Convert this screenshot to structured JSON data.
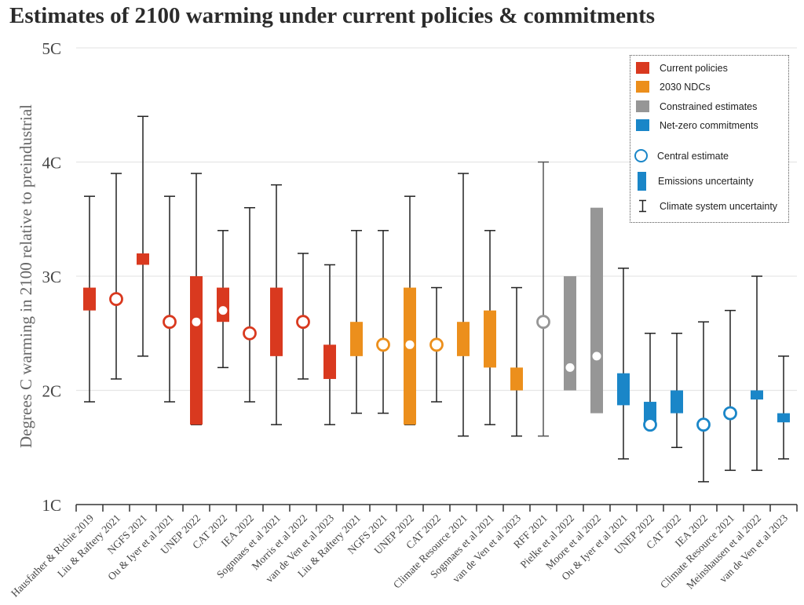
{
  "title": "Estimates of 2100 warming under current policies & commitments",
  "legend": {
    "categories": [
      {
        "label": "Current policies",
        "color": "#d9391f"
      },
      {
        "label": "2030 NDCs",
        "color": "#ec8f1c"
      },
      {
        "label": "Constrained estimates",
        "color": "#969696"
      },
      {
        "label": "Net-zero commitments",
        "color": "#1a86c8"
      }
    ],
    "markers": [
      {
        "label": "Central estimate",
        "icon": "circle-icon"
      },
      {
        "label": "Emissions uncertainty",
        "icon": "bar-icon"
      },
      {
        "label": "Climate system uncertainty",
        "icon": "error-bar-icon"
      }
    ]
  },
  "chart_data": {
    "type": "range-box",
    "title": "Estimates of 2100 warming under current policies & commitments",
    "xlabel": "",
    "ylabel": "Degrees C warming in 2100 relative to preindustrial",
    "ylim": [
      1,
      5
    ],
    "yticks": [
      1,
      2,
      3,
      4,
      5
    ],
    "ytick_labels": [
      "1C",
      "2C",
      "3C",
      "4C",
      "5C"
    ],
    "grid": true,
    "legend_position": "top-right",
    "colors": {
      "Current policies": "#d9391f",
      "2030 NDCs": "#ec8f1c",
      "Constrained estimates": "#969696",
      "Net-zero commitments": "#1a86c8"
    },
    "estimates": [
      {
        "label": "Hausfather & Richie 2019",
        "group": "Current policies",
        "box": [
          2.7,
          2.9
        ],
        "central": null,
        "whisker": [
          1.9,
          3.7
        ]
      },
      {
        "label": "Liu & Raftery 2021",
        "group": "Current policies",
        "box": null,
        "central": 2.8,
        "whisker": [
          2.1,
          3.9
        ]
      },
      {
        "label": "NGFS 2021",
        "group": "Current policies",
        "box": [
          3.1,
          3.2
        ],
        "central": null,
        "whisker": [
          2.3,
          4.4
        ]
      },
      {
        "label": "Ou & Iyer et al 2021",
        "group": "Current policies",
        "box": null,
        "central": 2.6,
        "whisker": [
          1.9,
          3.7
        ]
      },
      {
        "label": "UNEP 2022",
        "group": "Current policies",
        "box": [
          1.7,
          3.0
        ],
        "central": 2.6,
        "whisker": [
          1.7,
          3.9
        ]
      },
      {
        "label": "CAT 2022",
        "group": "Current policies",
        "box": [
          2.6,
          2.9
        ],
        "central": 2.7,
        "whisker": [
          2.2,
          3.4
        ]
      },
      {
        "label": "IEA 2022",
        "group": "Current policies",
        "box": null,
        "central": 2.5,
        "whisker": [
          1.9,
          3.6
        ]
      },
      {
        "label": "Sognnaes et al 2021",
        "group": "Current policies",
        "box": [
          2.3,
          2.9
        ],
        "central": null,
        "whisker": [
          1.7,
          3.8
        ]
      },
      {
        "label": "Morris et al 2022",
        "group": "Current policies",
        "box": null,
        "central": 2.6,
        "whisker": [
          2.1,
          3.2
        ]
      },
      {
        "label": "van de Ven et al 2023",
        "group": "Current policies",
        "box": [
          2.1,
          2.4
        ],
        "central": null,
        "whisker": [
          1.7,
          3.1
        ]
      },
      {
        "label": "Liu & Raftery 2021",
        "group": "2030 NDCs",
        "box": [
          2.3,
          2.6
        ],
        "central": null,
        "whisker": [
          1.8,
          3.4
        ]
      },
      {
        "label": "NGFS 2021",
        "group": "2030 NDCs",
        "box": null,
        "central": 2.4,
        "whisker": [
          1.8,
          3.4
        ]
      },
      {
        "label": "UNEP 2022",
        "group": "2030 NDCs",
        "box": [
          1.7,
          2.9
        ],
        "central": 2.4,
        "whisker": [
          1.7,
          3.7
        ]
      },
      {
        "label": "CAT 2022",
        "group": "2030 NDCs",
        "box": null,
        "central": 2.4,
        "whisker": [
          1.9,
          2.9
        ]
      },
      {
        "label": "Climate Resource 2021",
        "group": "2030 NDCs",
        "box": [
          2.3,
          2.6
        ],
        "central": null,
        "whisker": [
          1.6,
          3.9
        ]
      },
      {
        "label": "Sognnaes et al 2021",
        "group": "2030 NDCs",
        "box": [
          2.2,
          2.7
        ],
        "central": null,
        "whisker": [
          1.7,
          3.4
        ]
      },
      {
        "label": "van de Ven et al 2023",
        "group": "2030 NDCs",
        "box": [
          2.0,
          2.2
        ],
        "central": null,
        "whisker": [
          1.6,
          2.9
        ]
      },
      {
        "label": "RFF 2021",
        "group": "Constrained estimates",
        "box": null,
        "central": 2.6,
        "whisker": [
          1.6,
          4.0
        ]
      },
      {
        "label": "Pielke et al 2022",
        "group": "Constrained estimates",
        "box": [
          2.0,
          3.0
        ],
        "central": 2.2,
        "whisker": null
      },
      {
        "label": "Moore et al 2022",
        "group": "Constrained estimates",
        "box": [
          1.8,
          3.6
        ],
        "central": 2.3,
        "whisker": null
      },
      {
        "label": "Ou & Iyer et al 2021",
        "group": "Net-zero commitments",
        "box": [
          1.87,
          2.15
        ],
        "central": null,
        "whisker": [
          1.4,
          3.07
        ]
      },
      {
        "label": "UNEP 2022",
        "group": "Net-zero commitments",
        "box": [
          1.72,
          1.9
        ],
        "central": 1.7,
        "whisker": [
          1.7,
          2.5
        ]
      },
      {
        "label": "CAT 2022",
        "group": "Net-zero commitments",
        "box": [
          1.8,
          2.0
        ],
        "central": null,
        "whisker": [
          1.5,
          2.5
        ]
      },
      {
        "label": "IEA 2022",
        "group": "Net-zero commitments",
        "box": null,
        "central": 1.7,
        "whisker": [
          1.2,
          2.6
        ]
      },
      {
        "label": "Climate Resource 2021",
        "group": "Net-zero commitments",
        "box": null,
        "central": 1.8,
        "whisker": [
          1.3,
          2.7
        ]
      },
      {
        "label": "Meinshausen et al 2022",
        "group": "Net-zero commitments",
        "box": [
          1.92,
          2.0
        ],
        "central": null,
        "whisker": [
          1.3,
          3.0
        ]
      },
      {
        "label": "van de Ven et al 2023",
        "group": "Net-zero commitments",
        "box": [
          1.72,
          1.8
        ],
        "central": null,
        "whisker": [
          1.4,
          2.3
        ]
      }
    ]
  }
}
